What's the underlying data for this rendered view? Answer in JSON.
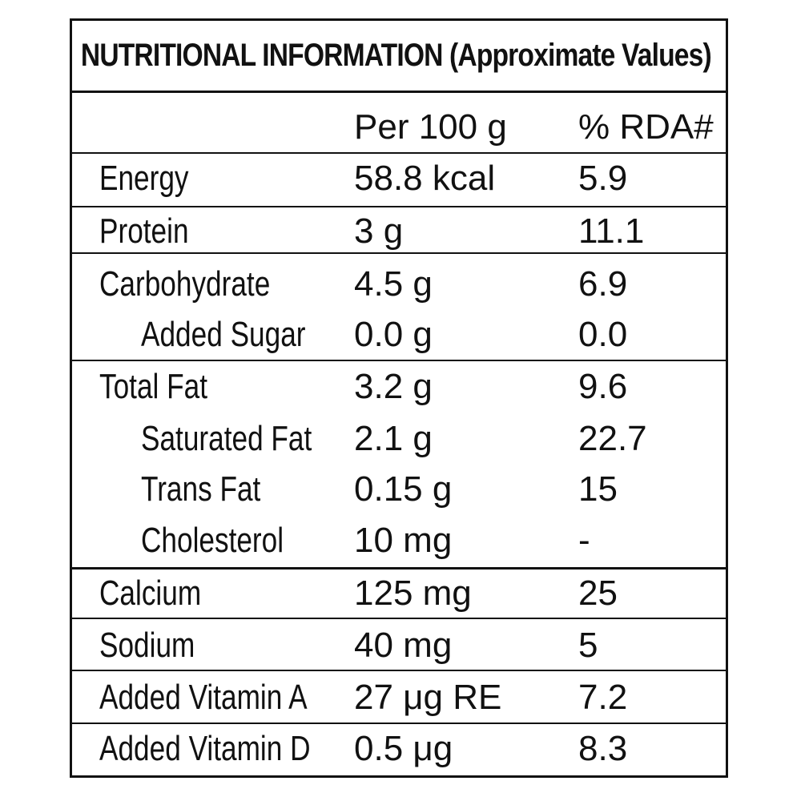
{
  "title": "NUTRITIONAL INFORMATION (Approximate Values)",
  "header": {
    "nutrient": "",
    "per_100g": "Per 100 g",
    "rda": "% RDA#"
  },
  "rows": [
    {
      "name": "Energy",
      "amount": "58.8 kcal",
      "rda": "5.9",
      "indent": false
    },
    {
      "name": "Protein",
      "amount": "3 g",
      "rda": "11.1",
      "indent": false
    },
    {
      "name": "Carbohydrate",
      "amount": "4.5 g",
      "rda": "6.9",
      "indent": false
    },
    {
      "name": "Added Sugar",
      "amount": "0.0 g",
      "rda": "0.0",
      "indent": true
    },
    {
      "name": "Total Fat",
      "amount": "3.2 g",
      "rda": "9.6",
      "indent": false
    },
    {
      "name": "Saturated Fat",
      "amount": "2.1 g",
      "rda": "22.7",
      "indent": true
    },
    {
      "name": "Trans Fat",
      "amount": "0.15 g",
      "rda": "15",
      "indent": true
    },
    {
      "name": "Cholesterol",
      "amount": "10 mg",
      "rda": "-",
      "indent": true
    },
    {
      "name": "Calcium",
      "amount": "125 mg",
      "rda": "25",
      "indent": false
    },
    {
      "name": "Sodium",
      "amount": "40 mg",
      "rda": "5",
      "indent": false
    },
    {
      "name": "Added Vitamin A",
      "amount": "27 μg RE",
      "rda": "7.2",
      "indent": false
    },
    {
      "name": "Added Vitamin D",
      "amount": "0.5 μg",
      "rda": "8.3",
      "indent": false
    }
  ]
}
